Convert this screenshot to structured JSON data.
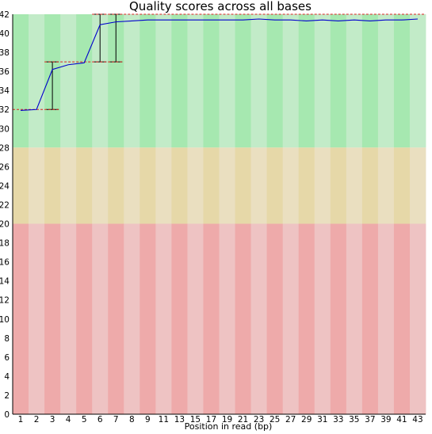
{
  "chart_data": {
    "type": "line",
    "title": "Quality scores across all bases",
    "xlabel": "Position in read (bp)",
    "ylabel": "",
    "ylim": [
      0,
      42
    ],
    "y_ticks": [
      0,
      2,
      4,
      6,
      8,
      10,
      12,
      14,
      16,
      18,
      20,
      22,
      24,
      26,
      28,
      30,
      32,
      34,
      36,
      38,
      40,
      42
    ],
    "x_tick_labels": [
      "1",
      "2",
      "3",
      "4",
      "5",
      "6",
      "7",
      "8",
      "9",
      "11",
      "13",
      "15",
      "17",
      "19",
      "21",
      "23",
      "25",
      "27",
      "29",
      "31",
      "33",
      "35",
      "37",
      "39",
      "41",
      "43"
    ],
    "bands": [
      {
        "name": "good",
        "from": 28,
        "to": 42,
        "colors": [
          "#a6e8b0",
          "#c2ebc8"
        ]
      },
      {
        "name": "reasonable",
        "from": 20,
        "to": 28,
        "colors": [
          "#e6d8a8",
          "#eadfc0"
        ]
      },
      {
        "name": "poor",
        "from": 0,
        "to": 20,
        "colors": [
          "#eeaaaa",
          "#eec3c3"
        ]
      }
    ],
    "series": [
      {
        "name": "",
        "color": "#0000cc",
        "x": [
          "1",
          "2",
          "3",
          "4",
          "5",
          "6",
          "7",
          "8",
          "9",
          "10-11",
          "12-13",
          "14-15",
          "16-17",
          "18-19",
          "20-21",
          "22-23",
          "24-25",
          "26-27",
          "28-29",
          "30-31",
          "32-33",
          "34-35",
          "36-37",
          "38-39",
          "40-41",
          "42-43"
        ],
        "mean": [
          31.9,
          32.0,
          36.2,
          36.7,
          36.9,
          40.9,
          41.2,
          41.3,
          41.4,
          41.4,
          41.4,
          41.4,
          41.4,
          41.4,
          41.4,
          41.5,
          41.4,
          41.4,
          41.3,
          41.4,
          41.3,
          41.4,
          41.3,
          41.4,
          41.4,
          41.5
        ]
      }
    ],
    "boxes": [
      {
        "x": "1",
        "lower": 32,
        "upper": 32,
        "median": 32
      },
      {
        "x": "2",
        "lower": 32,
        "upper": 32,
        "median": 32
      },
      {
        "x": "3",
        "lower": 32,
        "upper": 37,
        "median": 37
      },
      {
        "x": "4",
        "lower": 37,
        "upper": 37,
        "median": 37
      },
      {
        "x": "5",
        "lower": 37,
        "upper": 37,
        "median": 37
      },
      {
        "x": "6",
        "lower": 37,
        "upper": 42,
        "median": 42
      },
      {
        "x": "7",
        "lower": 37,
        "upper": 42,
        "median": 42
      },
      {
        "x": "8",
        "lower": 42,
        "upper": 42,
        "median": 42
      },
      {
        "x": "9",
        "lower": 42,
        "upper": 42,
        "median": 42
      },
      {
        "x": "10-11",
        "lower": 42,
        "upper": 42,
        "median": 42
      },
      {
        "x": "12-13",
        "lower": 42,
        "upper": 42,
        "median": 42
      },
      {
        "x": "14-15",
        "lower": 42,
        "upper": 42,
        "median": 42
      },
      {
        "x": "16-17",
        "lower": 42,
        "upper": 42,
        "median": 42
      },
      {
        "x": "18-19",
        "lower": 42,
        "upper": 42,
        "median": 42
      },
      {
        "x": "20-21",
        "lower": 42,
        "upper": 42,
        "median": 42
      },
      {
        "x": "22-23",
        "lower": 42,
        "upper": 42,
        "median": 42
      },
      {
        "x": "24-25",
        "lower": 42,
        "upper": 42,
        "median": 42
      },
      {
        "x": "26-27",
        "lower": 42,
        "upper": 42,
        "median": 42
      },
      {
        "x": "28-29",
        "lower": 42,
        "upper": 42,
        "median": 42
      },
      {
        "x": "30-31",
        "lower": 42,
        "upper": 42,
        "median": 42
      },
      {
        "x": "32-33",
        "lower": 42,
        "upper": 42,
        "median": 42
      },
      {
        "x": "34-35",
        "lower": 42,
        "upper": 42,
        "median": 42
      },
      {
        "x": "36-37",
        "lower": 42,
        "upper": 42,
        "median": 42
      },
      {
        "x": "38-39",
        "lower": 42,
        "upper": 42,
        "median": 42
      },
      {
        "x": "40-41",
        "lower": 42,
        "upper": 42,
        "median": 42
      },
      {
        "x": "42-43",
        "lower": 42,
        "upper": 42,
        "median": 42
      }
    ],
    "grid": false,
    "legend": "none"
  }
}
